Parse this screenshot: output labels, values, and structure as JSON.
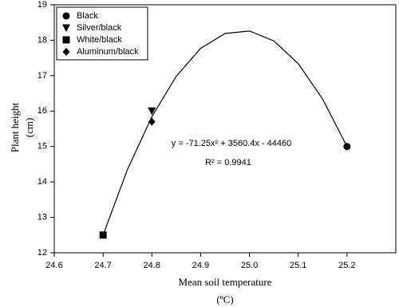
{
  "chart_data": {
    "type": "scatter",
    "xlabel": [
      "Mean soil temperature",
      "(ºC)"
    ],
    "ylabel": [
      "Plant height",
      "(cm)"
    ],
    "annotations": [
      "y = -71.25x² + 3560.4x - 44460",
      "R² = 0.9941"
    ],
    "series": [
      {
        "name": "Black",
        "color": "#000000",
        "marker": "circle",
        "x": [
          25.2
        ],
        "values": [
          15.0
        ]
      },
      {
        "name": "Silver/black",
        "color": "#000000",
        "marker": "triangle-down",
        "x": [
          24.8
        ],
        "values": [
          16.0
        ]
      },
      {
        "name": "White/black",
        "color": "#000000",
        "marker": "square",
        "x": [
          24.7
        ],
        "values": [
          12.5
        ]
      },
      {
        "name": "Aluminum/black",
        "color": "#000000",
        "marker": "diamond",
        "x": [
          24.8
        ],
        "values": [
          15.7
        ]
      }
    ],
    "fit_line": {
      "color": "#000000",
      "x": [
        24.7,
        24.75,
        24.8,
        24.85,
        24.9,
        24.95,
        25.0,
        25.05,
        25.1,
        25.15,
        25.2
      ],
      "values": [
        12.5,
        14.35,
        15.84,
        16.98,
        17.77,
        18.19,
        18.26,
        17.98,
        17.34,
        16.34,
        15.0
      ]
    },
    "xlim": [
      24.6,
      25.3
    ],
    "xticks": [
      24.6,
      24.7,
      24.8,
      24.9,
      {
        "value": 25,
        "label": "25.0"
      },
      25.1,
      25.2
    ],
    "ylim": [
      12,
      19
    ],
    "yticks": [
      12,
      13,
      14,
      15,
      16,
      17,
      18,
      19
    ],
    "legend": "upper-left"
  }
}
